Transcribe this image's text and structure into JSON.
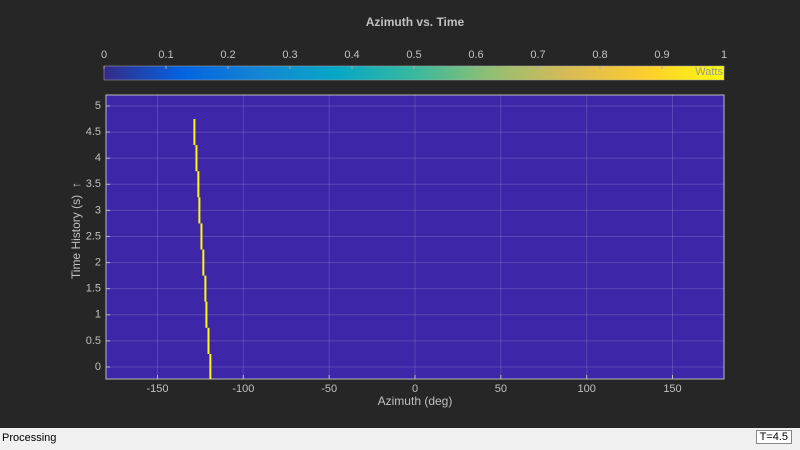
{
  "chart_data": {
    "type": "waterfall",
    "title": "Azimuth vs. Time",
    "x_label": "Azimuth (deg)",
    "y_label": "Time  History  (s)",
    "y_label_arrow": "↑",
    "x": [
      -119.2,
      -120.3,
      -121.5,
      -122.1,
      -123.3,
      -124.4,
      -125.6,
      -126.2,
      -127.3,
      -128.5
    ],
    "y": [
      0,
      0.5,
      1,
      1.5,
      2,
      2.5,
      3,
      3.5,
      4,
      4.5
    ],
    "color": "#f9fb0e",
    "background_color": "#3e26a8",
    "xlim": [
      -180,
      180
    ],
    "xticks": [
      -150,
      -100,
      -50,
      0,
      50,
      100,
      150
    ],
    "ylim": [
      -0.23,
      5.21
    ],
    "yticks": [
      0,
      0.5,
      1,
      1.5,
      2,
      2.5,
      3,
      3.5,
      4,
      4.5,
      5
    ],
    "grid": true,
    "colorbar": {
      "label": "Watts",
      "clim": [
        0,
        1
      ],
      "ticks": [
        0,
        0.1,
        0.2,
        0.3,
        0.4,
        0.5,
        0.6,
        0.7,
        0.8,
        0.9,
        1
      ],
      "colormap": [
        "#352a87",
        "#0363e1",
        "#1485d4",
        "#06a7c6",
        "#38b99e",
        "#92bf73",
        "#d9ba56",
        "#fcce2e",
        "#f9fb0e"
      ]
    }
  },
  "status_bar": {
    "left": "Processing",
    "right": "T=4.5"
  }
}
